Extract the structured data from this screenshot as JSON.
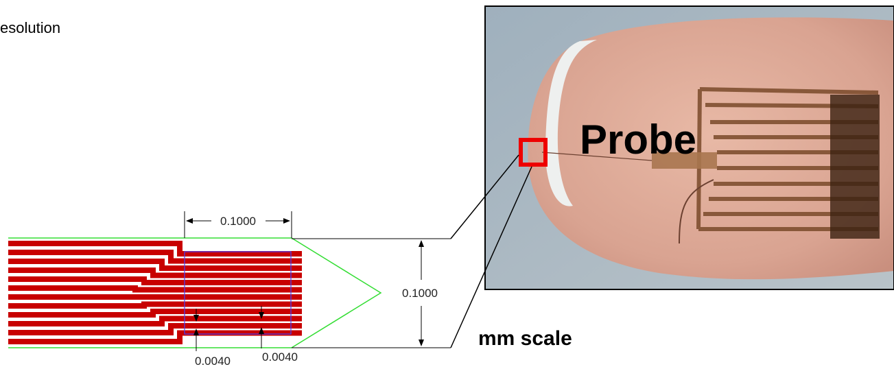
{
  "heading": "esolution",
  "dimensions": {
    "width": "0.1000",
    "height": "0.1000",
    "trace_width": "0.0040",
    "trace_gap": "0.0040"
  },
  "photo": {
    "label": "Probe",
    "caption": "mm scale"
  }
}
